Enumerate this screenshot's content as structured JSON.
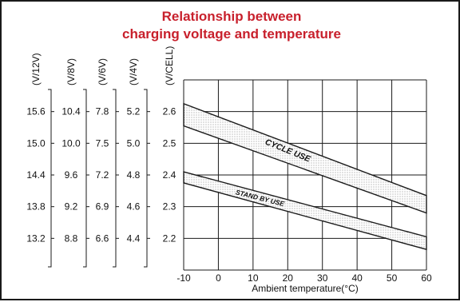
{
  "colors": {
    "title": "#c8202c",
    "line": "#1a1a1a",
    "dots": "#666666"
  },
  "chart_data": {
    "type": "area",
    "title_lines": [
      "Relationship between",
      "charging voltage and temperature"
    ],
    "xlabel": "Ambient temperature(°C)",
    "x_ticks": [
      -10,
      0,
      10,
      20,
      30,
      40,
      50,
      60
    ],
    "x_range": [
      -10,
      60
    ],
    "grid": true,
    "y_axes": [
      {
        "label": "(V/12V)",
        "ticks": [
          "15.6",
          "15.0",
          "14.4",
          "13.8",
          "13.2"
        ]
      },
      {
        "label": "(V/8V)",
        "ticks": [
          "10.4",
          "10.0",
          "9.6",
          "9.2",
          "8.8"
        ]
      },
      {
        "label": "(V/6V)",
        "ticks": [
          "7.8",
          "7.5",
          "7.2",
          "6.9",
          "6.6"
        ]
      },
      {
        "label": "(V/4V)",
        "ticks": [
          "5.2",
          "5.0",
          "4.8",
          "4.6",
          "4.4"
        ]
      },
      {
        "label": "(V/CELL)",
        "ticks": [
          "2.6",
          "2.5",
          "2.4",
          "2.3",
          "2.2"
        ]
      }
    ],
    "y_values_per_cell": [
      2.6,
      2.5,
      2.4,
      2.3,
      2.2
    ],
    "y_range": [
      2.1,
      2.7
    ],
    "series": [
      {
        "name": "CYCLE USE",
        "upper": [
          [
            -10,
            2.625
          ],
          [
            60,
            2.335
          ]
        ],
        "lower": [
          [
            -10,
            2.555
          ],
          [
            60,
            2.28
          ]
        ]
      },
      {
        "name": "STAND BY USE",
        "upper": [
          [
            -10,
            2.41
          ],
          [
            60,
            2.205
          ]
        ],
        "lower": [
          [
            -10,
            2.375
          ],
          [
            60,
            2.165
          ]
        ]
      }
    ]
  }
}
